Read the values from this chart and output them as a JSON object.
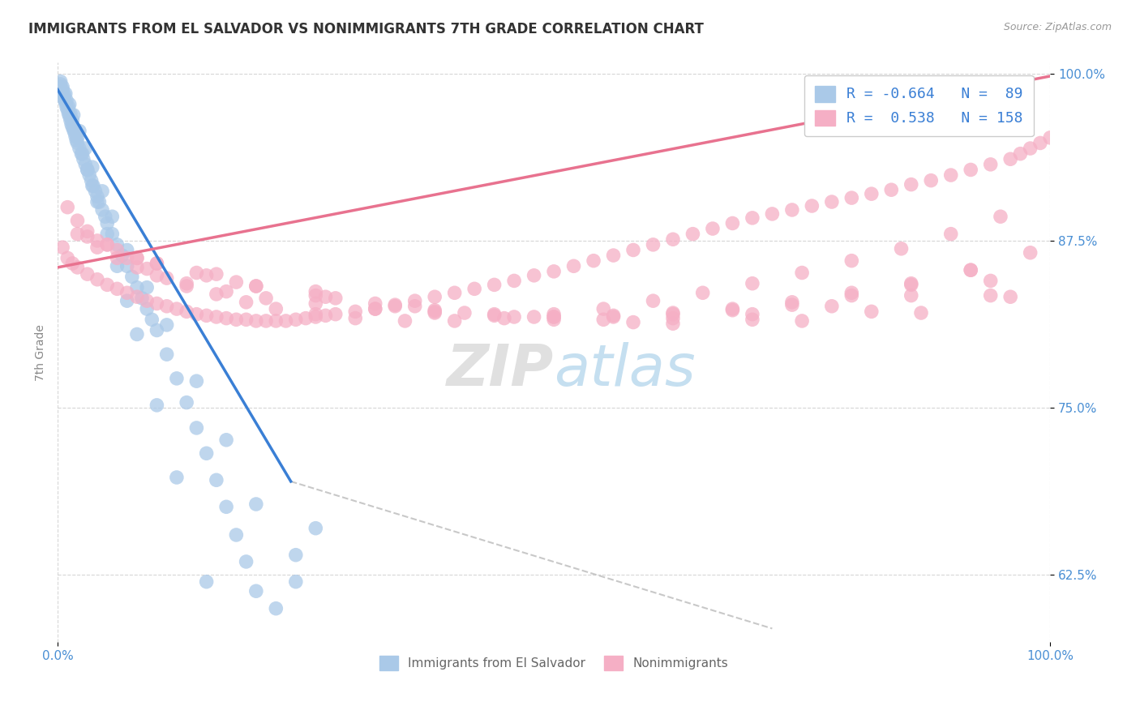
{
  "title": "IMMIGRANTS FROM EL SALVADOR VS NONIMMIGRANTS 7TH GRADE CORRELATION CHART",
  "source_text": "Source: ZipAtlas.com",
  "ylabel": "7th Grade",
  "xmin": 0.0,
  "xmax": 1.0,
  "ymin": 0.575,
  "ymax": 1.008,
  "ytick_labels": [
    "62.5%",
    "75.0%",
    "87.5%",
    "100.0%"
  ],
  "ytick_values": [
    0.625,
    0.75,
    0.875,
    1.0
  ],
  "xtick_labels": [
    "0.0%",
    "100.0%"
  ],
  "xtick_values": [
    0.0,
    1.0
  ],
  "blue_color": "#aac9e8",
  "pink_color": "#f5afc5",
  "blue_line_color": "#3a7fd5",
  "pink_line_color": "#e8728f",
  "blue_line_x": [
    0.0,
    0.235
  ],
  "blue_line_y": [
    0.988,
    0.695
  ],
  "pink_line_x": [
    0.0,
    1.0
  ],
  "pink_line_y": [
    0.855,
    0.998
  ],
  "dashed_line_x": [
    0.235,
    0.72
  ],
  "dashed_line_y": [
    0.695,
    0.585
  ],
  "blue_scatter_x": [
    0.002,
    0.003,
    0.004,
    0.005,
    0.006,
    0.007,
    0.008,
    0.009,
    0.01,
    0.011,
    0.012,
    0.013,
    0.014,
    0.015,
    0.016,
    0.017,
    0.018,
    0.019,
    0.02,
    0.022,
    0.024,
    0.026,
    0.028,
    0.03,
    0.032,
    0.034,
    0.036,
    0.038,
    0.04,
    0.042,
    0.045,
    0.048,
    0.05,
    0.055,
    0.06,
    0.065,
    0.07,
    0.075,
    0.08,
    0.085,
    0.09,
    0.095,
    0.1,
    0.11,
    0.12,
    0.13,
    0.14,
    0.15,
    0.16,
    0.17,
    0.18,
    0.19,
    0.2,
    0.22,
    0.24,
    0.26,
    0.003,
    0.005,
    0.007,
    0.009,
    0.011,
    0.013,
    0.015,
    0.018,
    0.02,
    0.025,
    0.03,
    0.035,
    0.04,
    0.05,
    0.06,
    0.07,
    0.08,
    0.1,
    0.12,
    0.15,
    0.003,
    0.005,
    0.008,
    0.012,
    0.016,
    0.022,
    0.028,
    0.035,
    0.045,
    0.055,
    0.07,
    0.09,
    0.11,
    0.14,
    0.17,
    0.2,
    0.24
  ],
  "blue_scatter_y": [
    0.99,
    0.988,
    0.986,
    0.985,
    0.982,
    0.98,
    0.978,
    0.975,
    0.973,
    0.97,
    0.968,
    0.965,
    0.962,
    0.96,
    0.958,
    0.956,
    0.953,
    0.95,
    0.948,
    0.944,
    0.94,
    0.936,
    0.932,
    0.928,
    0.924,
    0.92,
    0.916,
    0.912,
    0.908,
    0.904,
    0.898,
    0.893,
    0.888,
    0.88,
    0.872,
    0.864,
    0.856,
    0.848,
    0.84,
    0.832,
    0.824,
    0.816,
    0.808,
    0.79,
    0.772,
    0.754,
    0.735,
    0.716,
    0.696,
    0.676,
    0.655,
    0.635,
    0.613,
    0.6,
    0.64,
    0.66,
    0.992,
    0.988,
    0.984,
    0.98,
    0.975,
    0.97,
    0.965,
    0.958,
    0.952,
    0.94,
    0.928,
    0.916,
    0.904,
    0.88,
    0.856,
    0.83,
    0.805,
    0.752,
    0.698,
    0.62,
    0.994,
    0.99,
    0.985,
    0.977,
    0.969,
    0.957,
    0.944,
    0.93,
    0.912,
    0.893,
    0.868,
    0.84,
    0.812,
    0.77,
    0.726,
    0.678,
    0.62
  ],
  "pink_scatter_x": [
    0.005,
    0.01,
    0.015,
    0.02,
    0.03,
    0.04,
    0.05,
    0.06,
    0.07,
    0.08,
    0.09,
    0.1,
    0.11,
    0.12,
    0.13,
    0.14,
    0.15,
    0.16,
    0.17,
    0.18,
    0.19,
    0.2,
    0.21,
    0.22,
    0.23,
    0.24,
    0.25,
    0.26,
    0.27,
    0.28,
    0.3,
    0.32,
    0.34,
    0.36,
    0.38,
    0.4,
    0.42,
    0.44,
    0.46,
    0.48,
    0.5,
    0.52,
    0.54,
    0.56,
    0.58,
    0.6,
    0.62,
    0.64,
    0.66,
    0.68,
    0.7,
    0.72,
    0.74,
    0.76,
    0.78,
    0.8,
    0.82,
    0.84,
    0.86,
    0.88,
    0.9,
    0.92,
    0.94,
    0.96,
    0.97,
    0.98,
    0.99,
    1.0,
    0.01,
    0.02,
    0.03,
    0.05,
    0.07,
    0.09,
    0.11,
    0.13,
    0.16,
    0.19,
    0.22,
    0.26,
    0.3,
    0.35,
    0.4,
    0.45,
    0.5,
    0.55,
    0.6,
    0.65,
    0.7,
    0.75,
    0.8,
    0.85,
    0.9,
    0.95,
    0.02,
    0.04,
    0.06,
    0.08,
    0.1,
    0.13,
    0.17,
    0.21,
    0.26,
    0.32,
    0.38,
    0.44,
    0.5,
    0.56,
    0.62,
    0.68,
    0.74,
    0.8,
    0.86,
    0.92,
    0.98,
    0.03,
    0.06,
    0.1,
    0.15,
    0.2,
    0.26,
    0.32,
    0.38,
    0.44,
    0.5,
    0.56,
    0.62,
    0.68,
    0.74,
    0.8,
    0.86,
    0.92,
    0.04,
    0.08,
    0.14,
    0.2,
    0.27,
    0.34,
    0.41,
    0.48,
    0.55,
    0.62,
    0.7,
    0.78,
    0.86,
    0.94,
    0.05,
    0.1,
    0.18,
    0.28,
    0.38,
    0.5,
    0.62,
    0.75,
    0.87,
    0.96,
    0.08,
    0.16,
    0.26,
    0.36,
    0.46,
    0.58,
    0.7,
    0.82,
    0.94
  ],
  "pink_scatter_y": [
    0.87,
    0.862,
    0.858,
    0.855,
    0.85,
    0.846,
    0.842,
    0.839,
    0.836,
    0.833,
    0.83,
    0.828,
    0.826,
    0.824,
    0.822,
    0.82,
    0.819,
    0.818,
    0.817,
    0.816,
    0.816,
    0.815,
    0.815,
    0.815,
    0.815,
    0.816,
    0.817,
    0.818,
    0.819,
    0.82,
    0.822,
    0.824,
    0.827,
    0.83,
    0.833,
    0.836,
    0.839,
    0.842,
    0.845,
    0.849,
    0.852,
    0.856,
    0.86,
    0.864,
    0.868,
    0.872,
    0.876,
    0.88,
    0.884,
    0.888,
    0.892,
    0.895,
    0.898,
    0.901,
    0.904,
    0.907,
    0.91,
    0.913,
    0.917,
    0.92,
    0.924,
    0.928,
    0.932,
    0.936,
    0.94,
    0.944,
    0.948,
    0.952,
    0.9,
    0.89,
    0.882,
    0.872,
    0.862,
    0.854,
    0.847,
    0.841,
    0.835,
    0.829,
    0.824,
    0.82,
    0.817,
    0.815,
    0.815,
    0.817,
    0.82,
    0.824,
    0.83,
    0.836,
    0.843,
    0.851,
    0.86,
    0.869,
    0.88,
    0.893,
    0.88,
    0.87,
    0.862,
    0.855,
    0.849,
    0.843,
    0.837,
    0.832,
    0.828,
    0.824,
    0.821,
    0.819,
    0.818,
    0.819,
    0.821,
    0.824,
    0.829,
    0.836,
    0.843,
    0.853,
    0.866,
    0.878,
    0.868,
    0.858,
    0.849,
    0.841,
    0.834,
    0.828,
    0.823,
    0.82,
    0.818,
    0.818,
    0.82,
    0.823,
    0.827,
    0.834,
    0.842,
    0.853,
    0.875,
    0.862,
    0.851,
    0.841,
    0.833,
    0.826,
    0.821,
    0.818,
    0.816,
    0.817,
    0.82,
    0.826,
    0.834,
    0.845,
    0.872,
    0.858,
    0.844,
    0.832,
    0.822,
    0.816,
    0.813,
    0.815,
    0.821,
    0.833,
    0.862,
    0.85,
    0.837,
    0.826,
    0.818,
    0.814,
    0.816,
    0.822,
    0.834
  ]
}
